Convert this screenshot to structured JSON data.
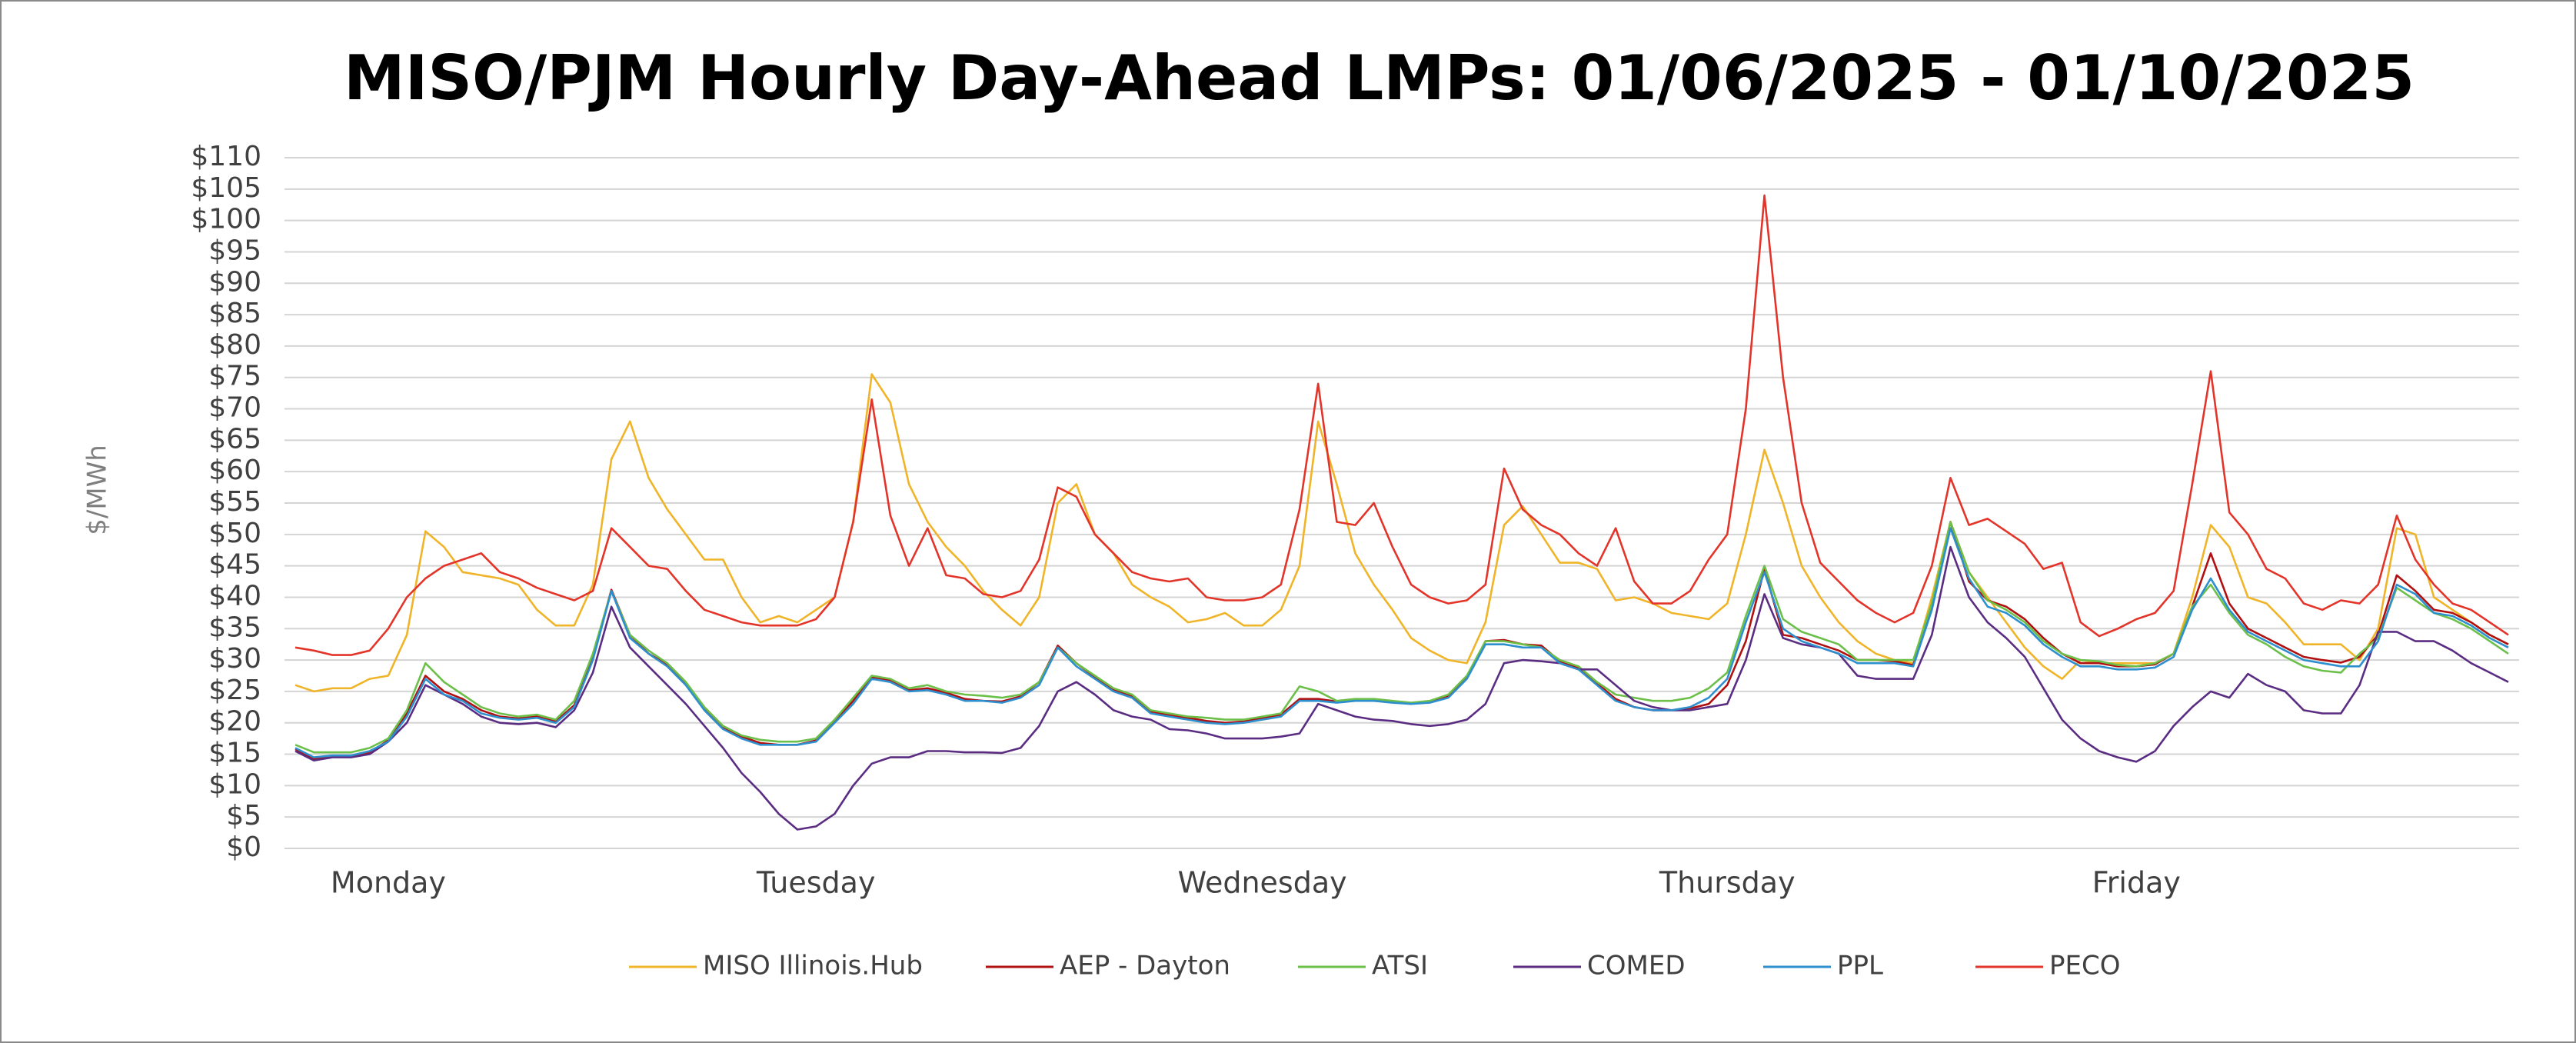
{
  "chart_data": {
    "type": "line",
    "title": "MISO/PJM Hourly Day-Ahead LMPs: 01/06/2025 - 01/10/2025",
    "y_label": "$/MWh",
    "categories": [
      null,
      null,
      null,
      null,
      null,
      "Monday",
      null,
      null,
      null,
      null,
      null,
      null,
      null,
      null,
      null,
      null,
      null,
      null,
      null,
      null,
      null,
      null,
      null,
      null,
      null,
      null,
      null,
      null,
      "Tuesday",
      null,
      null,
      null,
      null,
      null,
      null,
      null,
      null,
      null,
      null,
      null,
      null,
      null,
      null,
      null,
      null,
      null,
      null,
      null,
      null,
      null,
      null,
      null,
      "Wednesday",
      null,
      null,
      null,
      null,
      null,
      null,
      null,
      null,
      null,
      null,
      null,
      null,
      null,
      null,
      null,
      null,
      null,
      null,
      null,
      null,
      null,
      null,
      null,
      null,
      "Thursday",
      null,
      null,
      null,
      null,
      null,
      null,
      null,
      null,
      null,
      null,
      null,
      null,
      null,
      null,
      null,
      null,
      null,
      null,
      null,
      null,
      null,
      "Friday",
      null,
      null,
      null,
      null,
      null,
      null,
      null,
      null,
      null,
      null,
      null,
      null,
      null,
      null,
      null,
      null,
      null,
      null,
      null,
      null
    ],
    "ylim": [
      0,
      110
    ],
    "yticks": [
      {
        "value": 0,
        "label": "$0"
      },
      {
        "value": 5,
        "label": "$5"
      },
      {
        "value": 10,
        "label": "$10"
      },
      {
        "value": 15,
        "label": "$15"
      },
      {
        "value": 20,
        "label": "$20"
      },
      {
        "value": 25,
        "label": "$25"
      },
      {
        "value": 30,
        "label": "$30"
      },
      {
        "value": 35,
        "label": "$35"
      },
      {
        "value": 40,
        "label": "$40"
      },
      {
        "value": 45,
        "label": "$45"
      },
      {
        "value": 50,
        "label": "$50"
      },
      {
        "value": 55,
        "label": "$55"
      },
      {
        "value": 60,
        "label": "$60"
      },
      {
        "value": 65,
        "label": "$65"
      },
      {
        "value": 70,
        "label": "$70"
      },
      {
        "value": 75,
        "label": "$75"
      },
      {
        "value": 80,
        "label": "$80"
      },
      {
        "value": 85,
        "label": "$85"
      },
      {
        "value": 90,
        "label": "$90"
      },
      {
        "value": 95,
        "label": "$95"
      },
      {
        "value": 100,
        "label": "$100"
      },
      {
        "value": 105,
        "label": "$105"
      },
      {
        "value": 110,
        "label": "$110"
      }
    ],
    "grid": true,
    "legend": "bottom",
    "series": [
      {
        "name": "MISO Illinois.Hub",
        "color": "#f0b429",
        "values": [
          26,
          25,
          25.5,
          25.5,
          27,
          27.5,
          34,
          50.5,
          48,
          44,
          43.5,
          43,
          42,
          38,
          35.5,
          35.5,
          42,
          62,
          68,
          59,
          54,
          50,
          46,
          46,
          40,
          36,
          37,
          36,
          38,
          40,
          52,
          75.5,
          71,
          58,
          52,
          48,
          45,
          41,
          38,
          35.5,
          40,
          55,
          58,
          50,
          47,
          42,
          40,
          38.5,
          36,
          36.5,
          37.5,
          35.5,
          35.5,
          38,
          45,
          68,
          58,
          47,
          42,
          38,
          33.5,
          31.5,
          30,
          29.5,
          36,
          51.5,
          54.5,
          50,
          45.5,
          45.5,
          44.5,
          39.5,
          40,
          39,
          37.5,
          37,
          36.5,
          39,
          50,
          63.5,
          55,
          45,
          40,
          36,
          33,
          31,
          30,
          29.5,
          40,
          52,
          44,
          40,
          36,
          32,
          29,
          27,
          30,
          29.5,
          29.5,
          29.5,
          29.5,
          31,
          40,
          51.5,
          48,
          40,
          39,
          36,
          32.5,
          32.5,
          32.5,
          30,
          35,
          51,
          50,
          40,
          38,
          36,
          34,
          32.5
        ]
      },
      {
        "name": "AEP - Dayton",
        "color": "#b01010",
        "values": [
          15.8,
          14.3,
          14.6,
          14.6,
          15.3,
          17.2,
          21.5,
          27.5,
          25,
          23.8,
          22,
          21,
          20.7,
          21,
          20.2,
          22.8,
          30.5,
          41.2,
          34,
          31,
          29.3,
          26.3,
          22.3,
          19.3,
          17.8,
          16.8,
          16.5,
          16.5,
          17.2,
          20.2,
          23.5,
          27.3,
          26.8,
          25.2,
          25.5,
          24.8,
          23.8,
          23.5,
          23.4,
          24.2,
          26.5,
          32.3,
          29.5,
          27.3,
          25.3,
          24.2,
          21.8,
          21.2,
          20.8,
          20.3,
          20,
          20.2,
          20.8,
          21.3,
          23.8,
          23.8,
          23.4,
          23.7,
          23.6,
          23.4,
          23.1,
          23.4,
          24.2,
          27.3,
          33,
          33.2,
          32.5,
          32.3,
          29.8,
          28.8,
          26.3,
          23.8,
          22.5,
          22,
          22,
          22.3,
          23,
          26,
          33,
          44.5,
          34,
          33.5,
          32.5,
          31.5,
          30,
          30,
          29.8,
          29.2,
          38.5,
          52,
          42.5,
          39.5,
          38.5,
          36.5,
          33.5,
          31,
          29.5,
          29.5,
          29,
          29,
          29.3,
          31,
          38.5,
          47,
          39,
          35,
          33.5,
          32,
          30.5,
          30,
          29.6,
          30.5,
          34,
          43.5,
          41,
          38,
          37.5,
          36,
          34,
          32.5
        ]
      },
      {
        "name": "ATSI",
        "color": "#6cc04a",
        "values": [
          16.5,
          15.3,
          15.3,
          15.3,
          16,
          17.5,
          22,
          29.5,
          26.5,
          24.5,
          22.5,
          21.5,
          21,
          21.3,
          20.5,
          23.5,
          31,
          41,
          34,
          31.5,
          29.5,
          26.5,
          22.5,
          19.5,
          18,
          17.3,
          17,
          17,
          17.5,
          20.5,
          24,
          27.5,
          27,
          25.5,
          26,
          25,
          24.5,
          24.3,
          24,
          24.5,
          26.5,
          32,
          29.5,
          27.5,
          25.5,
          24.5,
          22,
          21.5,
          21,
          20.8,
          20.5,
          20.5,
          21,
          21.5,
          25.8,
          25,
          23.5,
          23.8,
          23.8,
          23.5,
          23.2,
          23.5,
          24.5,
          27.5,
          33,
          33,
          32.5,
          32,
          30,
          29,
          26.5,
          24.5,
          24,
          23.5,
          23.5,
          24,
          25.5,
          28,
          37,
          45,
          36.5,
          34.5,
          33.5,
          32.5,
          30,
          30,
          30,
          30,
          39,
          52,
          44,
          39.5,
          38,
          36,
          33,
          31,
          30,
          29.8,
          29.2,
          29,
          29.5,
          31,
          38.5,
          42,
          37.5,
          34,
          32.5,
          30.5,
          29,
          28.3,
          28,
          31,
          33.5,
          41.5,
          39.5,
          37.5,
          36.5,
          35,
          33,
          31
        ]
      },
      {
        "name": "COMED",
        "color": "#5a2d82",
        "values": [
          15.5,
          14,
          14.5,
          14.5,
          15,
          17,
          20,
          26,
          24.5,
          23,
          21,
          20,
          19.8,
          20,
          19.3,
          22,
          28,
          38.5,
          32,
          29,
          26,
          23,
          19.5,
          16,
          12,
          9,
          5.5,
          3,
          3.5,
          5.5,
          10,
          13.5,
          14.5,
          14.5,
          15.5,
          15.5,
          15.3,
          15.3,
          15.2,
          16,
          19.5,
          25,
          26.5,
          24.5,
          22,
          21,
          20.5,
          19,
          18.8,
          18.3,
          17.5,
          17.5,
          17.5,
          17.8,
          18.3,
          23,
          22,
          21,
          20.5,
          20.3,
          19.8,
          19.5,
          19.8,
          20.5,
          23,
          29.5,
          30,
          29.8,
          29.5,
          28.5,
          28.5,
          26,
          23.5,
          22.5,
          22,
          22,
          22.5,
          23,
          30,
          40.5,
          33.5,
          32.5,
          32,
          31,
          27.5,
          27,
          27,
          27,
          34,
          48,
          40,
          36,
          33.5,
          30.5,
          25.5,
          20.5,
          17.5,
          15.5,
          14.5,
          13.8,
          15.5,
          19.5,
          22.5,
          25,
          24,
          27.8,
          26,
          25,
          22,
          21.5,
          21.5,
          26,
          34.5,
          34.5,
          33,
          33,
          31.5,
          29.5,
          28,
          26.5
        ]
      },
      {
        "name": "PPL",
        "color": "#2e8fcf",
        "values": [
          16,
          14.5,
          14.8,
          14.8,
          15.5,
          17,
          21,
          27,
          24.5,
          23.5,
          21.5,
          20.8,
          20.5,
          20.8,
          20,
          22.5,
          30,
          41,
          33.5,
          31,
          29,
          26,
          22,
          19,
          17.5,
          16.5,
          16.5,
          16.5,
          17,
          20,
          23,
          27,
          26.5,
          25,
          25.2,
          24.5,
          23.5,
          23.5,
          23.2,
          24,
          26,
          32,
          29,
          27,
          25,
          24,
          21.5,
          21,
          20.5,
          20,
          19.8,
          20,
          20.5,
          21,
          23.5,
          23.5,
          23.2,
          23.5,
          23.5,
          23.2,
          23,
          23.2,
          24,
          27,
          32.5,
          32.5,
          32,
          32,
          29.5,
          28.5,
          26,
          23.5,
          22.5,
          22,
          22,
          22.5,
          24,
          27,
          36,
          44,
          35,
          33,
          32,
          31,
          29.5,
          29.5,
          29.5,
          29,
          38,
          51,
          43,
          38.5,
          37.5,
          35.5,
          32.5,
          30.5,
          29,
          29,
          28.5,
          28.5,
          28.8,
          30.5,
          38,
          43,
          38,
          34.5,
          33,
          31.5,
          30,
          29.5,
          29,
          29,
          33,
          42,
          40.5,
          37.5,
          37,
          35.5,
          33.5,
          32
        ]
      },
      {
        "name": "PECO",
        "color": "#e3342a",
        "values": [
          32,
          31.5,
          30.8,
          30.8,
          31.5,
          35,
          40,
          43,
          45,
          46,
          47,
          44,
          43,
          41.5,
          40.5,
          39.5,
          41,
          51,
          48,
          45,
          44.5,
          41,
          38,
          37,
          36,
          35.5,
          35.5,
          35.5,
          36.5,
          40,
          52,
          71.5,
          53,
          45,
          51,
          43.5,
          43,
          40.5,
          40,
          41,
          46,
          57.5,
          56,
          50,
          47,
          44,
          43,
          42.5,
          43,
          40,
          39.5,
          39.5,
          40,
          42,
          54,
          74,
          52,
          51.5,
          55,
          48,
          42,
          40,
          39,
          39.5,
          42,
          60.5,
          54,
          51.5,
          50,
          47,
          45,
          51,
          42.5,
          39,
          39,
          41,
          46,
          50,
          70,
          104,
          75,
          55,
          45.5,
          42.5,
          39.5,
          37.5,
          36,
          37.5,
          45,
          59,
          51.5,
          52.5,
          50.5,
          48.5,
          44.5,
          45.5,
          36,
          33.8,
          35,
          36.5,
          37.5,
          41,
          58,
          76,
          53.5,
          50,
          44.5,
          43,
          39,
          38,
          39.5,
          39,
          42,
          53,
          46,
          42,
          39,
          38,
          36,
          34
        ]
      }
    ]
  }
}
